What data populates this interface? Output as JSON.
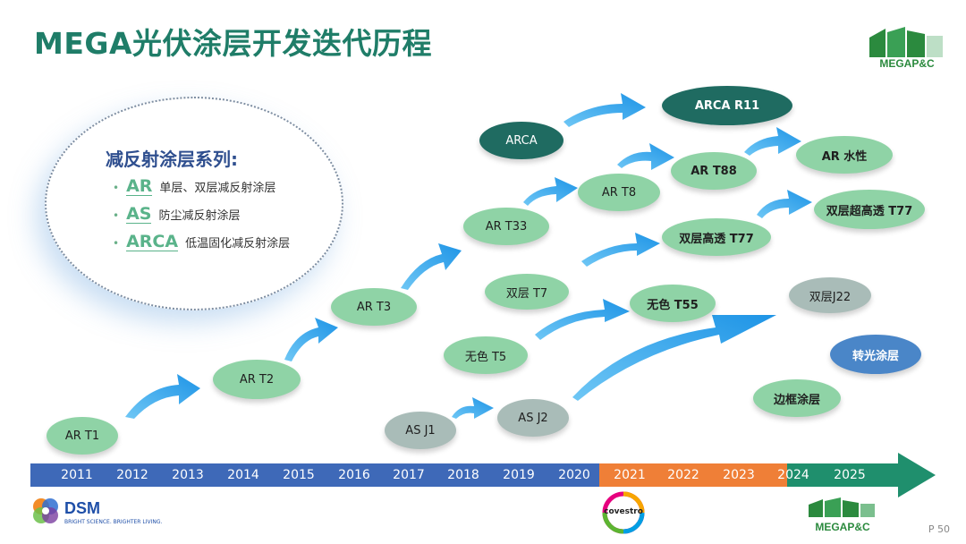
{
  "title": "MEGA光伏涂层开发迭代历程",
  "legend": {
    "title": "减反射涂层系列:",
    "items": [
      {
        "code": "AR",
        "desc": "单层、双层减反射涂层"
      },
      {
        "code": "AS",
        "desc": "防尘减反射涂层"
      },
      {
        "code": "ARCA",
        "desc": "低温固化减反射涂层"
      }
    ]
  },
  "nodes": {
    "ar_t1": "AR T1",
    "ar_t2": "AR T2",
    "ar_t3": "AR T3",
    "ar_t33": "AR T33",
    "ar_t8": "AR T8",
    "ar_t88": "AR T88",
    "ar_water": "AR 水性",
    "arca": "ARCA",
    "arca_r11": "ARCA R11",
    "double_t7": "双层 T7",
    "double_high_t77": "双层高透 T77",
    "double_super_t77": "双层超高透 T77",
    "colorless_t5": "无色 T5",
    "colorless_t55": "无色 T55",
    "double_j22": "双层J22",
    "as_j1": "AS J1",
    "as_j2": "AS J2",
    "light_conversion": "转光涂层",
    "frame_coating": "边框涂层"
  },
  "timeline": {
    "years": [
      "2011",
      "2012",
      "2013",
      "2014",
      "2015",
      "2016",
      "2017",
      "2018",
      "2019",
      "2020",
      "2021",
      "2022",
      "2023",
      "2024",
      "2025"
    ]
  },
  "logos": {
    "mega_top": "MEGAP&C",
    "dsm": "DSM",
    "dsm_tagline": "BRIGHT SCIENCE. BRIGHTER LIVING.",
    "covestro": "covestro",
    "mega_bottom": "MEGAP&C"
  },
  "page_number": "P 50",
  "colors": {
    "title": "#1f7d68",
    "node_green": "#8fd3a6",
    "node_gray": "#a9bcb8",
    "node_teal": "#1f6b61",
    "node_blue": "#4a86c8",
    "arrow": "#1e9ae8",
    "timeline_blue": "#3e69b8",
    "timeline_orange": "#ef7f37",
    "timeline_green": "#1f8f6d"
  }
}
